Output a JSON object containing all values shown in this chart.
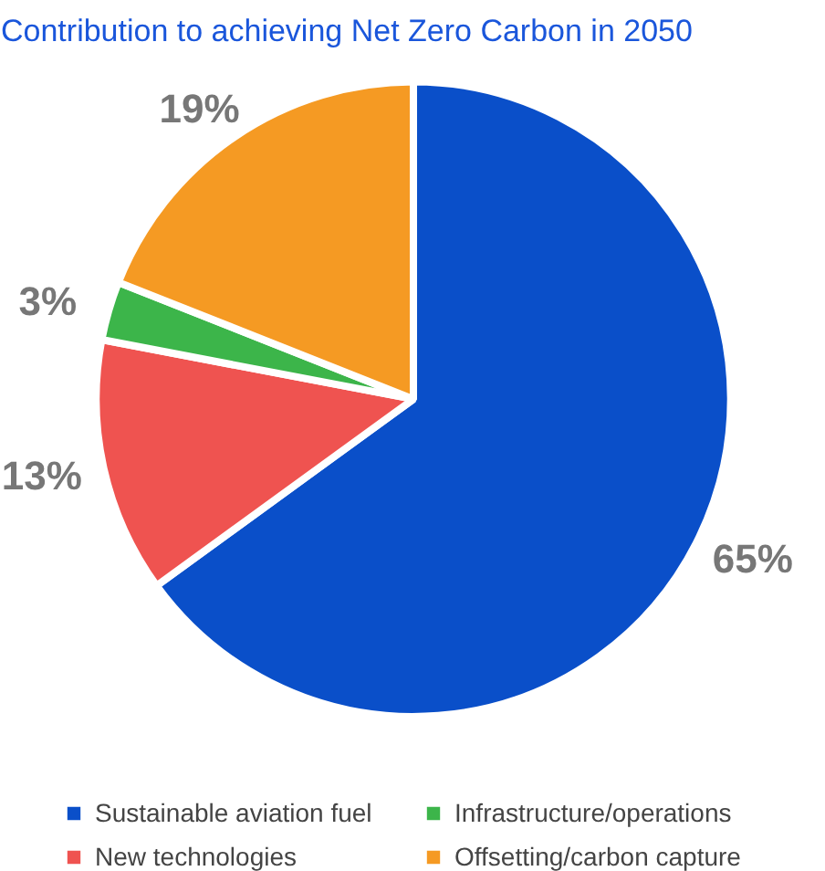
{
  "chart_data": {
    "type": "pie",
    "title": "Contribution to achieving Net Zero Carbon in 2050",
    "categories": [
      "Sustainable aviation fuel",
      "New technologies",
      "Infrastructure/operations",
      "Offsetting/carbon capture"
    ],
    "values": [
      65,
      13,
      3,
      19
    ],
    "colors": [
      "#0a4fc9",
      "#ef5350",
      "#3cb54a",
      "#f59a23"
    ],
    "value_labels": [
      "65%",
      "13%",
      "3%",
      "19%"
    ],
    "legend": "bottom"
  }
}
